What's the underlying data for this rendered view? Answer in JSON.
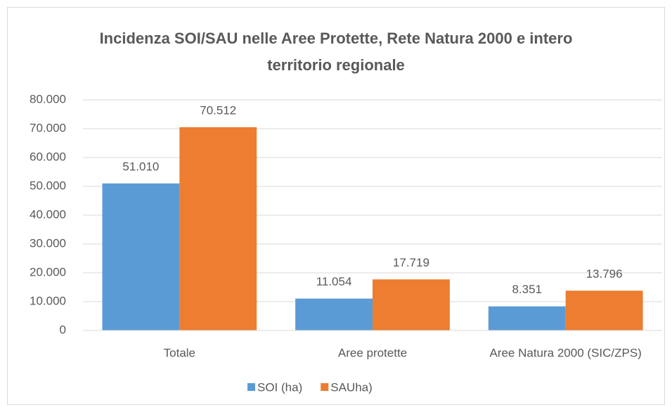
{
  "chart_data": {
    "type": "bar",
    "title": "Incidenza SOI/SAU nelle Aree Protette, Rete Natura 2000 e intero territorio regionale",
    "categories": [
      "Totale",
      "Aree protette",
      "Aree Natura 2000 (SIC/ZPS)"
    ],
    "series": [
      {
        "name": "SOI (ha)",
        "color": "#5b9bd5",
        "values": [
          51010,
          11054,
          8351
        ],
        "value_labels": [
          "51.010",
          "11.054",
          "8.351"
        ]
      },
      {
        "name": "SAUha)",
        "color": "#ed7d31",
        "values": [
          70512,
          17719,
          13796
        ],
        "value_labels": [
          "70.512",
          "17.719",
          "13.796"
        ]
      }
    ],
    "ylim": [
      0,
      80000
    ],
    "yticks": [
      0,
      {
        "value": 10000,
        "label": "10.000"
      },
      {
        "value": 20000,
        "label": "20.000"
      },
      {
        "value": 30000,
        "label": "30.000"
      },
      {
        "value": 40000,
        "label": "40.000"
      },
      {
        "value": 50000,
        "label": "50.000"
      },
      {
        "value": 60000,
        "label": "60.000"
      },
      {
        "value": 70000,
        "label": "70.000"
      },
      {
        "value": 80000,
        "label": "80.000"
      }
    ],
    "grid": true,
    "legend": "bottom"
  }
}
